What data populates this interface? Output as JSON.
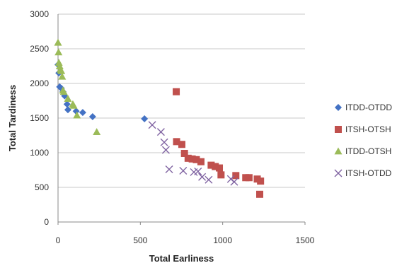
{
  "chart_data": {
    "type": "scatter",
    "xlabel": "Total Earliness",
    "ylabel": "Total Tardiness",
    "xlim": [
      0,
      1500
    ],
    "ylim": [
      0,
      3000
    ],
    "xticks": [
      0,
      500,
      1000,
      1500
    ],
    "yticks": [
      0,
      500,
      1000,
      1500,
      2000,
      2500,
      3000
    ],
    "grid": "horizontal",
    "legend_position": "right",
    "series": [
      {
        "name": "ITDD-OTDD",
        "marker": "diamond",
        "color": "#4472C4",
        "points": [
          {
            "x": 0,
            "y": 2270
          },
          {
            "x": 5,
            "y": 2150
          },
          {
            "x": 10,
            "y": 1950
          },
          {
            "x": 20,
            "y": 1930
          },
          {
            "x": 30,
            "y": 1880
          },
          {
            "x": 40,
            "y": 1820
          },
          {
            "x": 55,
            "y": 1700
          },
          {
            "x": 60,
            "y": 1620
          },
          {
            "x": 110,
            "y": 1600
          },
          {
            "x": 150,
            "y": 1580
          },
          {
            "x": 210,
            "y": 1520
          },
          {
            "x": 525,
            "y": 1490
          }
        ]
      },
      {
        "name": "ITSH-OTSH",
        "marker": "square",
        "color": "#C0504D",
        "points": [
          {
            "x": 718,
            "y": 1880
          },
          {
            "x": 720,
            "y": 1160
          },
          {
            "x": 752,
            "y": 1120
          },
          {
            "x": 768,
            "y": 990
          },
          {
            "x": 790,
            "y": 920
          },
          {
            "x": 815,
            "y": 910
          },
          {
            "x": 840,
            "y": 900
          },
          {
            "x": 868,
            "y": 870
          },
          {
            "x": 930,
            "y": 820
          },
          {
            "x": 955,
            "y": 800
          },
          {
            "x": 980,
            "y": 780
          },
          {
            "x": 990,
            "y": 680
          },
          {
            "x": 1080,
            "y": 670
          },
          {
            "x": 1140,
            "y": 640
          },
          {
            "x": 1160,
            "y": 640
          },
          {
            "x": 1210,
            "y": 620
          },
          {
            "x": 1230,
            "y": 590
          },
          {
            "x": 1225,
            "y": 400
          }
        ]
      },
      {
        "name": "ITDD-OTSH",
        "marker": "triangle",
        "color": "#9BBB59",
        "points": [
          {
            "x": 0,
            "y": 2590
          },
          {
            "x": 3,
            "y": 2450
          },
          {
            "x": 5,
            "y": 2300
          },
          {
            "x": 10,
            "y": 2250
          },
          {
            "x": 15,
            "y": 2200
          },
          {
            "x": 20,
            "y": 2180
          },
          {
            "x": 25,
            "y": 2100
          },
          {
            "x": 30,
            "y": 1900
          },
          {
            "x": 35,
            "y": 1880
          },
          {
            "x": 60,
            "y": 1780
          },
          {
            "x": 90,
            "y": 1700
          },
          {
            "x": 95,
            "y": 1680
          },
          {
            "x": 115,
            "y": 1540
          },
          {
            "x": 235,
            "y": 1300
          }
        ]
      },
      {
        "name": "ITSH-OTDD",
        "marker": "x",
        "color": "#8064A2",
        "points": [
          {
            "x": 572,
            "y": 1400
          },
          {
            "x": 625,
            "y": 1300
          },
          {
            "x": 645,
            "y": 1150
          },
          {
            "x": 655,
            "y": 1040
          },
          {
            "x": 675,
            "y": 760
          },
          {
            "x": 760,
            "y": 740
          },
          {
            "x": 825,
            "y": 720
          },
          {
            "x": 850,
            "y": 730
          },
          {
            "x": 875,
            "y": 650
          },
          {
            "x": 915,
            "y": 610
          },
          {
            "x": 1050,
            "y": 620
          },
          {
            "x": 1070,
            "y": 580
          }
        ]
      }
    ]
  }
}
